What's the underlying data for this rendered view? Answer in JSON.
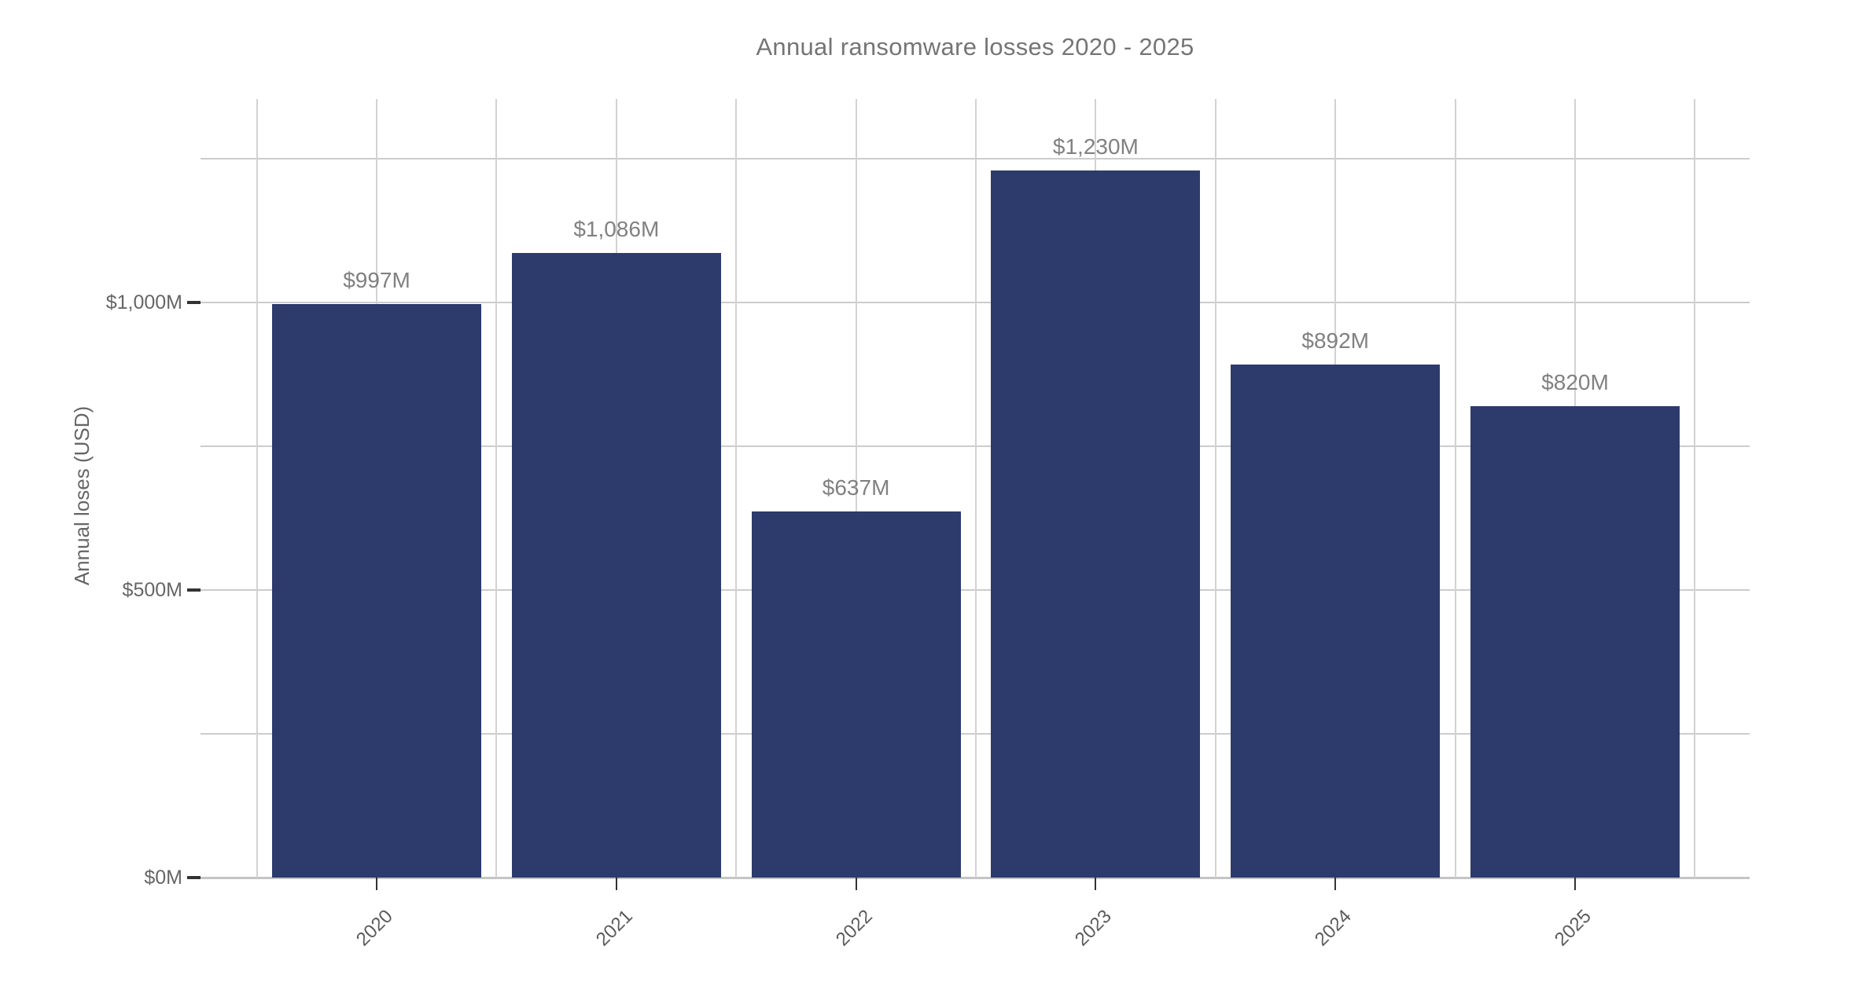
{
  "chart": {
    "title": "Annual ransomware losses 2020 - 2025",
    "y_axis_title": "Annual loses (USD)"
  },
  "chart_data": {
    "type": "bar",
    "title": "Annual ransomware losses 2020 - 2025",
    "xlabel": "",
    "ylabel": "Annual loses (USD)",
    "categories": [
      "2020",
      "2021",
      "2022",
      "2023",
      "2024",
      "2025"
    ],
    "values": [
      997,
      1086,
      637,
      1230,
      892,
      820
    ],
    "value_labels": [
      "$997M",
      "$1,086M",
      "$637M",
      "$1,230M",
      "$892M",
      "$820M"
    ],
    "value_unit": "USD millions",
    "ylim": [
      0,
      1354
    ],
    "y_ticks": [
      {
        "value": 0,
        "label": "$0M"
      },
      {
        "value": 500,
        "label": "$500M"
      },
      {
        "value": 1000,
        "label": "$1,000M"
      }
    ],
    "y_gridline_step": 250,
    "y_gridline_max": 1250,
    "grid": "horizontal every 250M, vertical at bar centers and midpoints",
    "legend_position": "none",
    "colors": {
      "bar": "#2d3a6c",
      "gridline": "#cccccc",
      "tick_mark": "#333333",
      "title_text": "#757575",
      "axis_label_text": "#666666",
      "value_label_text": "#818181",
      "background": "#ffffff"
    }
  }
}
